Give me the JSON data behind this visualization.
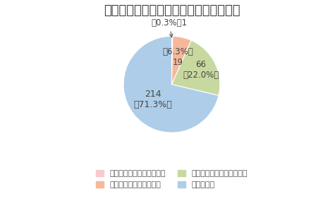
{
  "title": "母体血清マーカー検査をご存知ですか？",
  "slices": [
    {
      "label": "検査を受けたことがある。",
      "value": 1,
      "pct": "0.3%",
      "color": "#f9c8d0"
    },
    {
      "label": "検査内容を知っている。",
      "value": 19,
      "pct": "6.3%",
      "color": "#f5b89a"
    },
    {
      "label": "名前を聞いたことがある。",
      "value": 66,
      "pct": "22.0%",
      "color": "#c8d9a0"
    },
    {
      "label": "知らない。",
      "value": 214,
      "pct": "71.3%",
      "color": "#aecde8"
    }
  ],
  "legend_ncol": 2,
  "title_fontsize": 13,
  "label_fontsize": 8.5,
  "legend_fontsize": 8
}
